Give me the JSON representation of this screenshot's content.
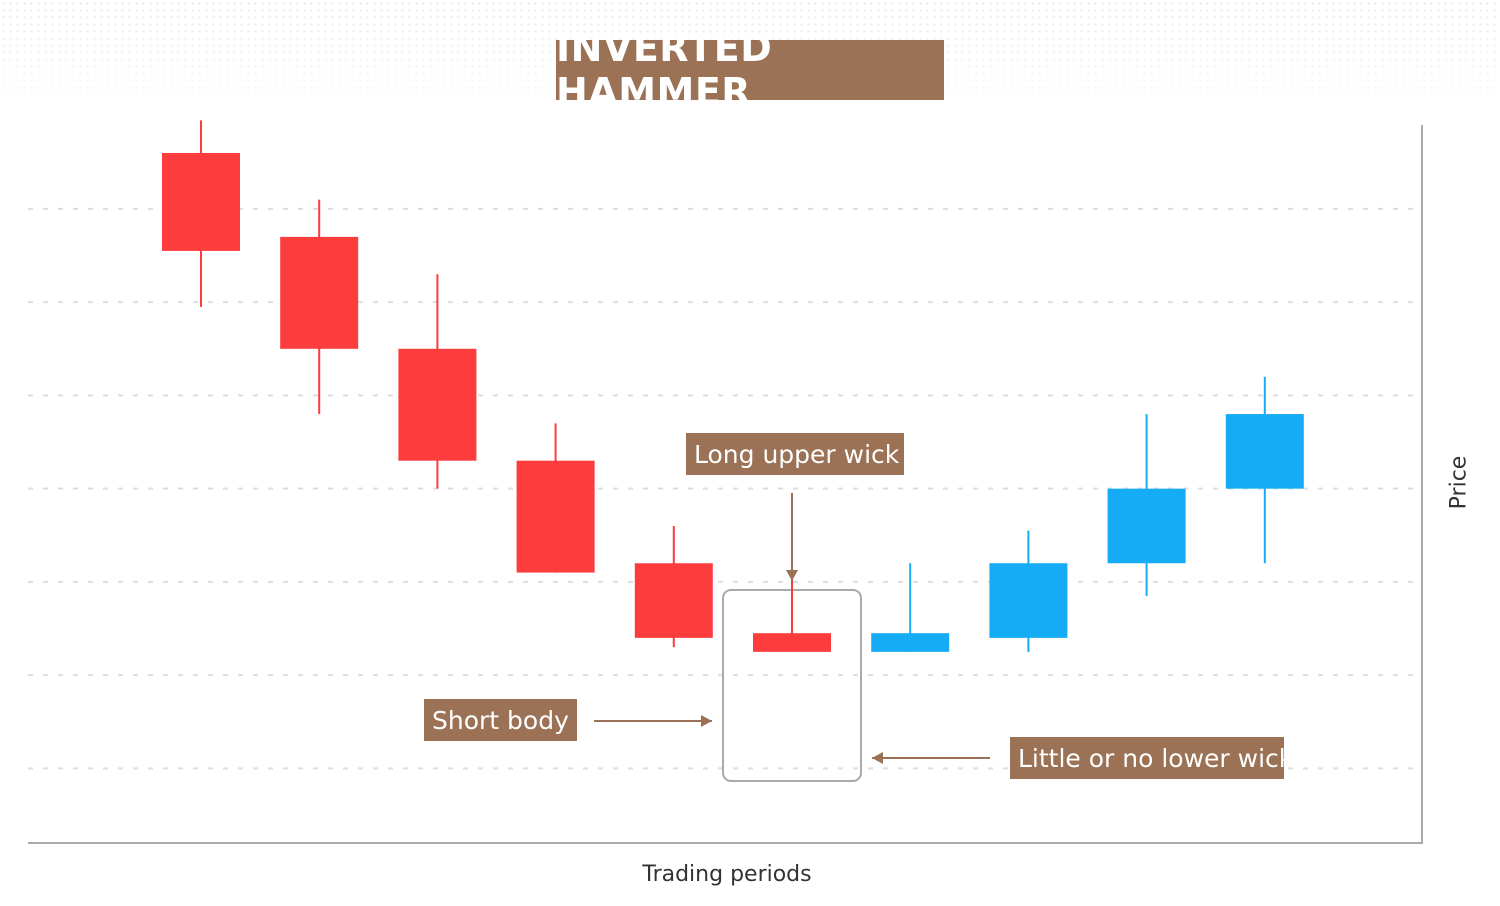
{
  "title": "INVERTED HAMMER",
  "colors": {
    "accent": "#9c7256",
    "bearish": "#fc3c3d",
    "bullish": "#16abf5",
    "grid": "#dddddd",
    "axis": "#aaaaaa",
    "highlight_border": "#aaaaaa"
  },
  "annotations": {
    "long_upper_wick": "Long upper wick",
    "short_body": "Short body",
    "little_or_no_lower_wick": "Little or no lower wick"
  },
  "chart_data": {
    "type": "candlestick",
    "title": "INVERTED HAMMER",
    "xlabel": "Trading periods",
    "ylabel": "Price",
    "ylim": [
      -0.8,
      6.9
    ],
    "grid": true,
    "grid_values": [
      0,
      1,
      2,
      3,
      4,
      5,
      6,
      7
    ],
    "highlight_index": 5,
    "candles": [
      {
        "open": 6.6,
        "high": 6.95,
        "low": 4.95,
        "close": 5.55,
        "direction": "bearish"
      },
      {
        "open": 5.7,
        "high": 6.1,
        "low": 3.8,
        "close": 4.5,
        "direction": "bearish"
      },
      {
        "open": 4.5,
        "high": 5.3,
        "low": 3.0,
        "close": 3.3,
        "direction": "bearish"
      },
      {
        "open": 3.3,
        "high": 3.7,
        "low": 2.1,
        "close": 2.1,
        "direction": "bearish"
      },
      {
        "open": 2.2,
        "high": 2.6,
        "low": 1.3,
        "close": 1.4,
        "direction": "bearish"
      },
      {
        "open": 1.45,
        "high": 2.2,
        "low": 1.25,
        "close": 1.25,
        "direction": "bearish"
      },
      {
        "open": 1.25,
        "high": 2.2,
        "low": 1.25,
        "close": 1.45,
        "direction": "bullish"
      },
      {
        "open": 1.4,
        "high": 2.55,
        "low": 1.25,
        "close": 2.2,
        "direction": "bullish"
      },
      {
        "open": 2.2,
        "high": 3.8,
        "low": 1.85,
        "close": 3.0,
        "direction": "bullish"
      },
      {
        "open": 3.0,
        "high": 4.2,
        "low": 2.2,
        "close": 3.8,
        "direction": "bullish"
      }
    ]
  }
}
